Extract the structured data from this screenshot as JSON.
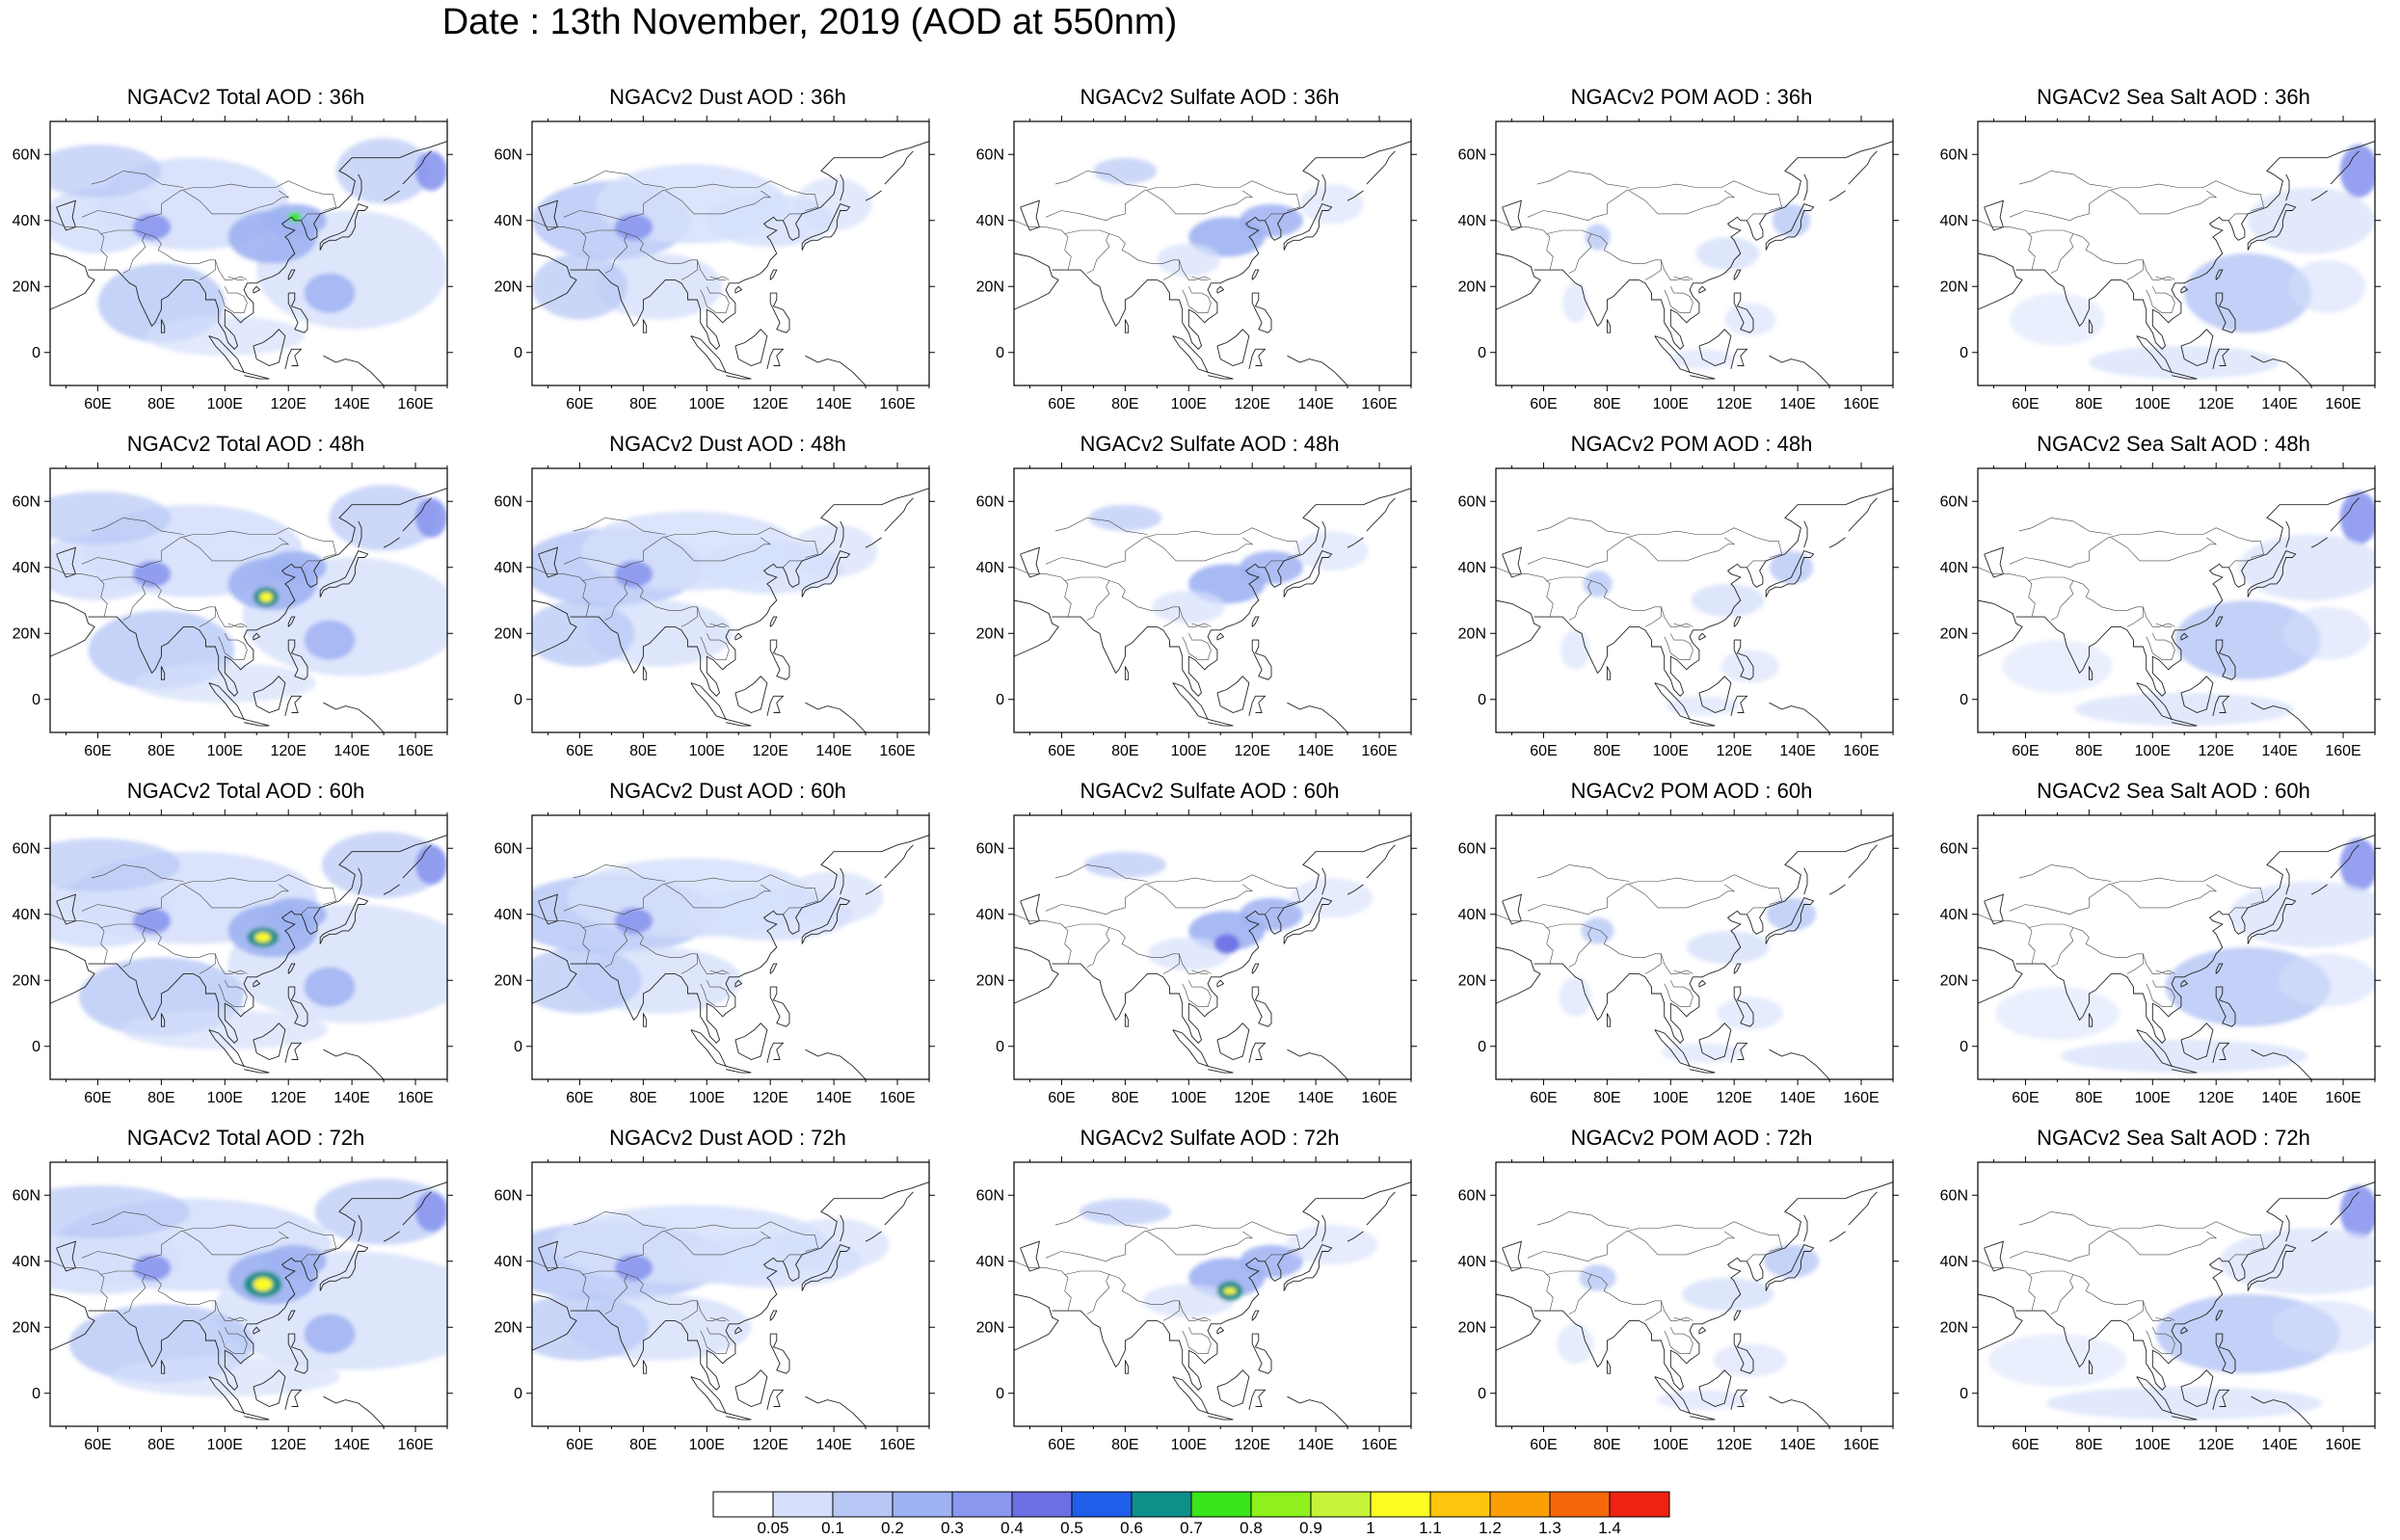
{
  "title": "Date : 13th November, 2019 (AOD at 550nm)",
  "lat_ticks": [
    "60N",
    "40N",
    "20N",
    "0"
  ],
  "lon_ticks": [
    "60E",
    "80E",
    "100E",
    "120E",
    "140E",
    "160E"
  ],
  "rows": [
    {
      "hour": "36h",
      "panels": [
        {
          "title": "NGACv2 Total AOD : 36h",
          "species": "total"
        },
        {
          "title": "NGACv2 Dust AOD : 36h",
          "species": "dust"
        },
        {
          "title": "NGACv2 Sulfate AOD : 36h",
          "species": "sulfate"
        },
        {
          "title": "NGACv2 POM AOD : 36h",
          "species": "pom"
        },
        {
          "title": "NGACv2 Sea Salt AOD : 36h",
          "species": "seasalt"
        }
      ]
    },
    {
      "hour": "48h",
      "panels": [
        {
          "title": "NGACv2 Total AOD : 48h",
          "species": "total"
        },
        {
          "title": "NGACv2 Dust AOD : 48h",
          "species": "dust"
        },
        {
          "title": "NGACv2 Sulfate AOD : 48h",
          "species": "sulfate"
        },
        {
          "title": "NGACv2 POM AOD : 48h",
          "species": "pom"
        },
        {
          "title": "NGACv2 Sea Salt AOD : 48h",
          "species": "seasalt"
        }
      ]
    },
    {
      "hour": "60h",
      "panels": [
        {
          "title": "NGACv2 Total AOD : 60h",
          "species": "total"
        },
        {
          "title": "NGACv2 Dust AOD : 60h",
          "species": "dust"
        },
        {
          "title": "NGACv2 Sulfate AOD : 60h",
          "species": "sulfate"
        },
        {
          "title": "NGACv2 POM AOD : 60h",
          "species": "pom"
        },
        {
          "title": "NGACv2 Sea Salt AOD : 60h",
          "species": "seasalt"
        }
      ]
    },
    {
      "hour": "72h",
      "panels": [
        {
          "title": "NGACv2 Total AOD : 72h",
          "species": "total"
        },
        {
          "title": "NGACv2 Dust AOD : 72h",
          "species": "dust"
        },
        {
          "title": "NGACv2 Sulfate AOD : 72h",
          "species": "sulfate"
        },
        {
          "title": "NGACv2 POM AOD : 72h",
          "species": "pom"
        },
        {
          "title": "NGACv2 Sea Salt  AOD : 72h",
          "species": "seasalt"
        }
      ]
    }
  ],
  "colorbar": {
    "labels": [
      "0.05",
      "0.1",
      "0.2",
      "0.3",
      "0.4",
      "0.5",
      "0.6",
      "0.7",
      "0.8",
      "0.9",
      "1",
      "1.1",
      "1.2",
      "1.3",
      "1.4"
    ],
    "colors": [
      "#ffffff",
      "#d6e0fb",
      "#b8c8f6",
      "#9fb2f2",
      "#8a97ee",
      "#6a6fe4",
      "#1f5ee8",
      "#0f8f8a",
      "#39e51a",
      "#8ef01c",
      "#c8f23a",
      "#fdfc22",
      "#fdc50c",
      "#fb9f05",
      "#f5670a",
      "#ef2212"
    ]
  }
}
